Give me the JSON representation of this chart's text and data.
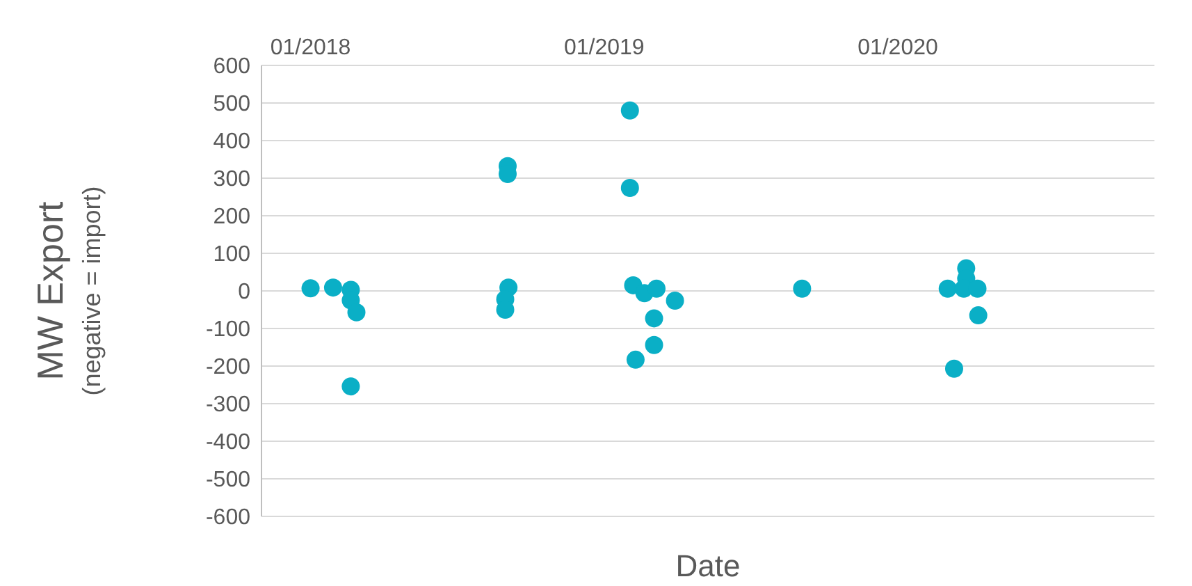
{
  "chart_data": {
    "type": "scatter",
    "xlabel": "Date",
    "ylabel": "MW Export\n(negative = import)",
    "x": [
      "2018-01-01",
      "2018-01-29",
      "2018-02-20",
      "2018-02-20",
      "2018-02-27",
      "2018-02-20",
      "2018-09-03",
      "2018-09-03",
      "2018-09-04",
      "2018-08-31",
      "2018-08-31",
      "2019-02-02",
      "2019-02-02",
      "2019-02-06",
      "2019-02-20",
      "2019-03-02",
      "2019-03-07",
      "2019-03-30",
      "2019-03-04",
      "2019-03-04",
      "2019-02-09",
      "2019-09-04",
      "2020-02-24",
      "2020-03-03",
      "2020-03-26",
      "2020-03-26",
      "2020-03-23",
      "2020-04-09",
      "2020-04-10",
      "2020-03-11"
    ],
    "series": [
      {
        "color": "#0aafc6",
        "values": [
          7,
          9,
          3,
          -25,
          -57,
          -254,
          332,
          311,
          9,
          -22,
          -50,
          480,
          274,
          15,
          -6,
          null,
          6,
          -26,
          -73,
          -144,
          -183,
          6,
          null,
          6,
          60,
          33,
          6,
          6,
          -65,
          -207
        ]
      }
    ],
    "xlim": [
      "2017-11-01",
      "2020-11-15"
    ],
    "xticks": [
      {
        "value": "2018-01-01",
        "label": "01/2018"
      },
      {
        "value": "2019-01-01",
        "label": "01/2019"
      },
      {
        "value": "2020-01-01",
        "label": "01/2020"
      }
    ],
    "ylim": [
      -600,
      600
    ],
    "yticks": [
      -600,
      -500,
      -400,
      -300,
      -200,
      -100,
      0,
      100,
      200,
      300,
      400,
      500,
      600
    ],
    "grid": "y",
    "marker": "circle"
  }
}
